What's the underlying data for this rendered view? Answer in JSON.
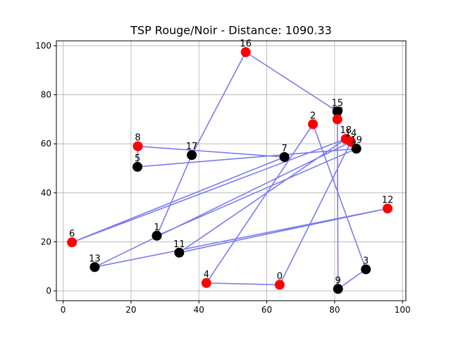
{
  "chart_data": {
    "type": "scatter",
    "title": "TSP Rouge/Noir - Distance: 1090.33",
    "xlabel": "",
    "ylabel": "",
    "xlim": [
      -2,
      101
    ],
    "ylim": [
      -4,
      102
    ],
    "xticks": [
      0,
      20,
      40,
      60,
      80,
      100
    ],
    "yticks": [
      0,
      20,
      40,
      60,
      80,
      100
    ],
    "grid": true,
    "colors": {
      "route": "#7b7bf0",
      "red": "#ff0000",
      "black": "#000000",
      "grid": "#b0b0b0"
    },
    "points": [
      {
        "label": "0",
        "x": 63.8,
        "y": 2.5,
        "color": "red"
      },
      {
        "label": "1",
        "x": 27.6,
        "y": 22.5,
        "color": "black"
      },
      {
        "label": "2",
        "x": 73.6,
        "y": 68.0,
        "color": "red"
      },
      {
        "label": "3",
        "x": 89.2,
        "y": 8.8,
        "color": "black"
      },
      {
        "label": "4",
        "x": 42.2,
        "y": 3.2,
        "color": "red"
      },
      {
        "label": "5",
        "x": 21.9,
        "y": 50.6,
        "color": "black"
      },
      {
        "label": "6",
        "x": 2.6,
        "y": 19.8,
        "color": "red"
      },
      {
        "label": "7",
        "x": 65.2,
        "y": 54.6,
        "color": "black"
      },
      {
        "label": "8",
        "x": 22.0,
        "y": 59.0,
        "color": "red"
      },
      {
        "label": "9",
        "x": 81.0,
        "y": 0.8,
        "color": "black"
      },
      {
        "label": "11",
        "x": 34.2,
        "y": 15.6,
        "color": "black"
      },
      {
        "label": "12",
        "x": 95.6,
        "y": 33.6,
        "color": "red"
      },
      {
        "label": "13",
        "x": 9.3,
        "y": 9.7,
        "color": "black"
      },
      {
        "label": "14",
        "x": 84.8,
        "y": 60.8,
        "color": "red"
      },
      {
        "label": "15",
        "x": 80.8,
        "y": 73.2,
        "color": "black"
      },
      {
        "label": "16",
        "x": 53.8,
        "y": 97.4,
        "color": "red"
      },
      {
        "label": "17",
        "x": 37.9,
        "y": 55.4,
        "color": "black"
      },
      {
        "label": "18",
        "x": 83.3,
        "y": 62.0,
        "color": "red"
      },
      {
        "label": "19",
        "x": 86.4,
        "y": 58.0,
        "color": "black"
      },
      {
        "label": "10",
        "x": 80.8,
        "y": 70.0,
        "color": "red"
      }
    ],
    "route": [
      "16",
      "15",
      "10",
      "9",
      "3",
      "2",
      "4",
      "0",
      "14",
      "13",
      "12",
      "11",
      "18",
      "6",
      "7",
      "8",
      "5",
      "19",
      "1",
      "17",
      "16"
    ]
  }
}
